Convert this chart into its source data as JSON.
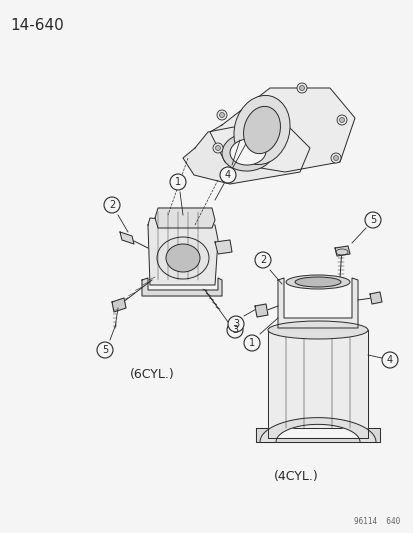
{
  "title_code": "14-640",
  "bg_color": "#f5f5f5",
  "line_color": "#2a2a2a",
  "label_6cyl": "(6CYL.)",
  "label_4cyl": "(4CYL.)",
  "watermark": "96114  640",
  "title_fontsize": 11,
  "label_fontsize": 9,
  "number_fontsize": 7,
  "watermark_fontsize": 5.5
}
